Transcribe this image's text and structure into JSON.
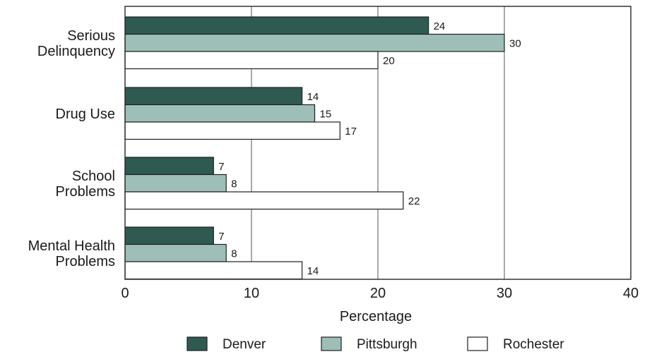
{
  "chart_data": {
    "type": "bar",
    "orientation": "horizontal",
    "categories": [
      [
        "Serious",
        "Delinquency"
      ],
      [
        "Drug Use"
      ],
      [
        "School",
        "Problems"
      ],
      [
        "Mental Health",
        "Problems"
      ]
    ],
    "series": [
      {
        "name": "Denver",
        "color": "#2e5a52",
        "values": [
          24,
          14,
          7,
          7
        ]
      },
      {
        "name": "Pittsburgh",
        "color": "#9ebfb8",
        "values": [
          30,
          15,
          8,
          8
        ]
      },
      {
        "name": "Rochester",
        "color": "#ffffff",
        "values": [
          20,
          17,
          22,
          14
        ]
      }
    ],
    "xlabel": "Percentage",
    "xlim": [
      0,
      40
    ],
    "xticks": [
      0,
      10,
      20,
      30,
      40
    ],
    "grid": "vertical",
    "legend": "bottom-center"
  }
}
